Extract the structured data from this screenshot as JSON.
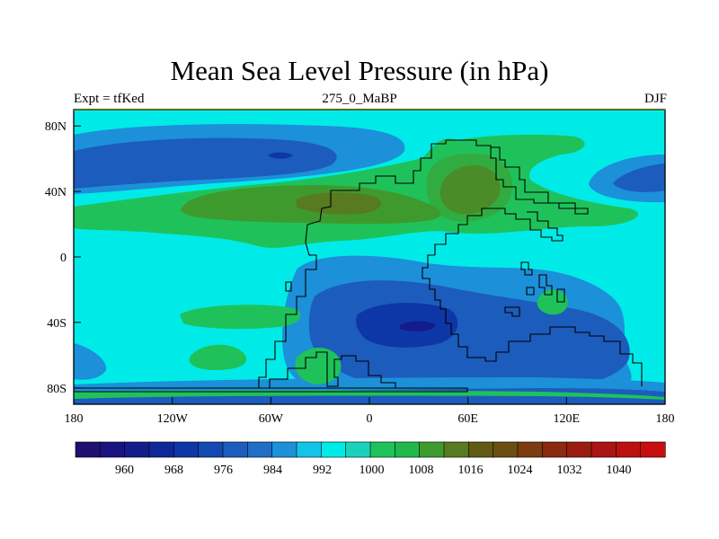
{
  "title": "Mean Sea Level Pressure (in hPa)",
  "subtitle_left": "Expt = tfKed",
  "subtitle_center": "275_0_MaBP",
  "subtitle_right": "DJF",
  "x_tick_labels": [
    "180",
    "120W",
    "60W",
    "0",
    "60E",
    "120E",
    "180"
  ],
  "y_tick_labels": [
    "80N",
    "40N",
    "0",
    "40S",
    "80S"
  ],
  "colorbar": {
    "colors": [
      "#1f0f6e",
      "#1a1280",
      "#141c8c",
      "#0f2898",
      "#0d37a6",
      "#1448b2",
      "#1c5cbc",
      "#206ec6",
      "#1c90d8",
      "#14c4e6",
      "#00ebe8",
      "#1ad2bc",
      "#1fc25a",
      "#20b84c",
      "#3f9a2e",
      "#587a20",
      "#605a14",
      "#6a4e12",
      "#7a3c10",
      "#8a2a0e",
      "#9a1c10",
      "#aa1414",
      "#bc1010",
      "#c80e0e"
    ],
    "tick_labels": [
      "960",
      "968",
      "976",
      "984",
      "992",
      "1000",
      "1008",
      "1016",
      "1024",
      "1032",
      "1040"
    ]
  },
  "chart_data": {
    "type": "heatmap",
    "title": "Mean Sea Level Pressure (in hPa)",
    "x": [
      -180,
      -120,
      -60,
      0,
      60,
      120,
      180
    ],
    "y": [
      80,
      40,
      0,
      -40,
      -80
    ],
    "xlim": [
      -180,
      180
    ],
    "ylim": [
      -90,
      90
    ],
    "levels": [
      960,
      964,
      968,
      972,
      976,
      980,
      984,
      988,
      992,
      996,
      1000,
      1004,
      1008,
      1012,
      1016,
      1020,
      1024,
      1028,
      1032,
      1036,
      1040
    ],
    "background_value": 1001,
    "regions": [
      {
        "name": "north-pacific-low-outer",
        "value": 996
      },
      {
        "name": "north-pacific-low-core",
        "value": 982
      },
      {
        "name": "north-pacific-low-center",
        "value": 975
      },
      {
        "name": "northern-subtropical-high",
        "value": 1009
      },
      {
        "name": "northern-subtropical-high-core",
        "value": 1015
      },
      {
        "name": "asian-high",
        "value": 1016
      },
      {
        "name": "southern-tropical-low",
        "value": 995
      },
      {
        "name": "southern-continental-low",
        "value": 987
      },
      {
        "name": "southern-continental-low-core",
        "value": 978
      },
      {
        "name": "southern-ocean-low",
        "value": 990
      },
      {
        "name": "south-pacific-high",
        "value": 1006
      }
    ]
  }
}
